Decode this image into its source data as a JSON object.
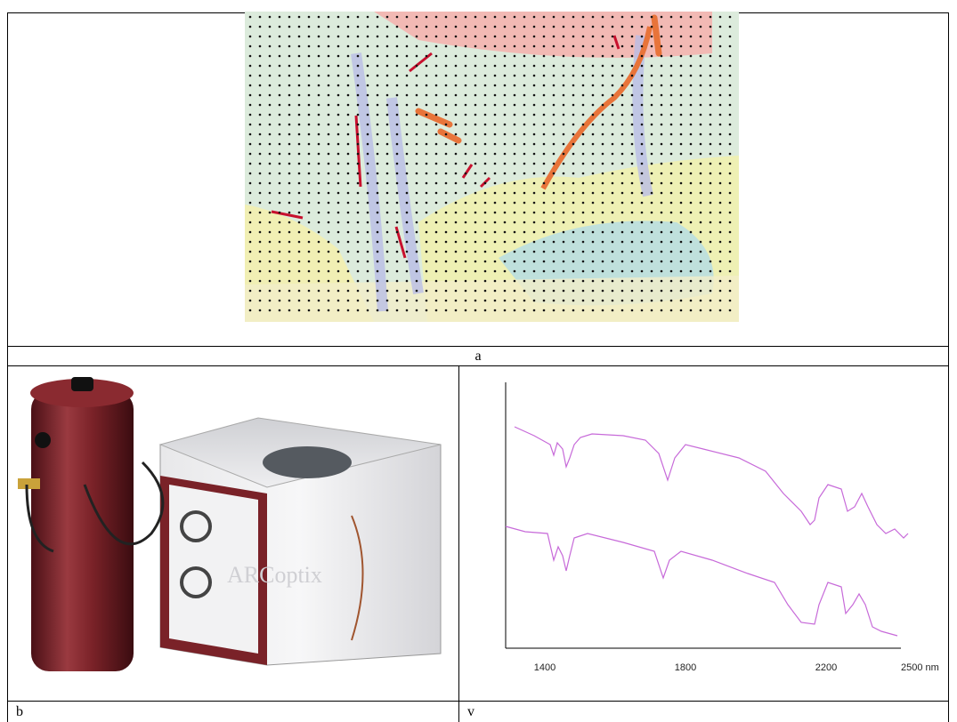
{
  "figure": {
    "panels": [
      {
        "label": "a"
      },
      {
        "label": "b"
      },
      {
        "label": "v"
      }
    ],
    "device_logo": "ARCoptix",
    "spectrum_axis": {
      "ticks": [
        1400,
        1800,
        2200,
        "2500 nm"
      ]
    }
  }
}
